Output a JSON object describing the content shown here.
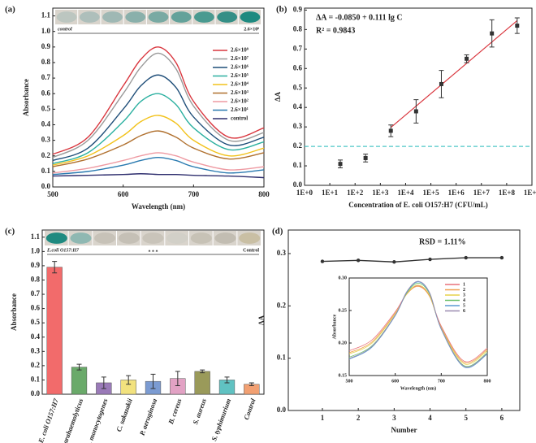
{
  "chart_data": [
    {
      "type": "line",
      "panel": "(a)",
      "xlabel": "Wavelength (nm)",
      "ylabel": "Absorbance",
      "x": [
        500,
        550,
        600,
        625,
        650,
        675,
        700,
        750,
        800
      ],
      "xlim": [
        500,
        800
      ],
      "xticks": [
        500,
        600,
        700,
        800
      ],
      "ylim": [
        0,
        1.15
      ],
      "yticks": [
        {
          "value": 0,
          "label": "0.0"
        },
        0.1,
        0.2,
        0.3,
        0.4,
        0.5,
        0.6,
        0.7,
        0.8,
        0.9,
        {
          "value": 1,
          "label": "1.0"
        },
        1.1
      ],
      "legend": "upper right",
      "strip": {
        "left": "control",
        "right": "2.6×10⁸"
      },
      "series": [
        {
          "name": "2.6×10⁸",
          "color": "#d9363e",
          "values": [
            0.21,
            0.32,
            0.65,
            0.82,
            0.9,
            0.8,
            0.55,
            0.32,
            0.38
          ]
        },
        {
          "name": "2.6×10⁷",
          "color": "#9a9a9a",
          "values": [
            0.19,
            0.3,
            0.6,
            0.77,
            0.86,
            0.76,
            0.52,
            0.3,
            0.35
          ]
        },
        {
          "name": "2.6×10⁶",
          "color": "#1f4e79",
          "values": [
            0.17,
            0.25,
            0.5,
            0.65,
            0.72,
            0.64,
            0.45,
            0.27,
            0.32
          ]
        },
        {
          "name": "2.6×10⁵",
          "color": "#2bb0a0",
          "values": [
            0.15,
            0.22,
            0.42,
            0.55,
            0.6,
            0.53,
            0.38,
            0.24,
            0.29
          ]
        },
        {
          "name": "2.6×10⁴",
          "color": "#f2c21b",
          "values": [
            0.14,
            0.2,
            0.33,
            0.42,
            0.46,
            0.41,
            0.3,
            0.2,
            0.25
          ]
        },
        {
          "name": "2.6×10³",
          "color": "#b0702e",
          "values": [
            0.13,
            0.18,
            0.27,
            0.33,
            0.36,
            0.32,
            0.25,
            0.18,
            0.22
          ]
        },
        {
          "name": "2.6×10²",
          "color": "#ee9aa2",
          "values": [
            0.09,
            0.12,
            0.17,
            0.2,
            0.22,
            0.2,
            0.16,
            0.11,
            0.13
          ]
        },
        {
          "name": "2.6×10¹",
          "color": "#2a7ab0",
          "values": [
            0.08,
            0.1,
            0.14,
            0.17,
            0.19,
            0.17,
            0.13,
            0.09,
            0.11
          ]
        },
        {
          "name": "control",
          "color": "#2e2e6e",
          "values": [
            0.07,
            0.075,
            0.08,
            0.085,
            0.08,
            0.08,
            0.075,
            0.07,
            0.06
          ]
        }
      ]
    },
    {
      "type": "scatter",
      "panel": "(b)",
      "xlabel": "Concentration of E. coli O157:H7 (CFU/mL)",
      "ylabel": "ΔA",
      "equation": "ΔA = -0.0850 + 0.111 lg C",
      "r2": "R² = 0.9843",
      "xlog": true,
      "xlim": [
        1,
        1000000000
      ],
      "xticks": [
        {
          "value": 1,
          "label": "1E+0"
        },
        {
          "value": 10,
          "label": "1E+1"
        },
        {
          "value": 100,
          "label": "1E+2"
        },
        {
          "value": 1000,
          "label": "1E+3"
        },
        {
          "value": 10000,
          "label": "1E+4"
        },
        {
          "value": 100000,
          "label": "1E+5"
        },
        {
          "value": 1000000,
          "label": "1E+6"
        },
        {
          "value": 10000000,
          "label": "1E+7"
        },
        {
          "value": 100000000,
          "label": "1E+8"
        },
        {
          "value": 1000000000,
          "label": "1E+9"
        }
      ],
      "ylim": [
        0,
        0.91
      ],
      "yticks": [
        {
          "value": 0,
          "label": "0.0"
        },
        0.1,
        0.2,
        0.3,
        0.4,
        0.5,
        0.6,
        0.7,
        0.8,
        0.9
      ],
      "x": [
        26,
        260,
        2600,
        26000,
        260000,
        2600000,
        26000000,
        260000000
      ],
      "values": [
        0.11,
        0.14,
        0.28,
        0.38,
        0.52,
        0.65,
        0.78,
        0.82
      ],
      "errors": [
        0.02,
        0.02,
        0.03,
        0.06,
        0.07,
        0.02,
        0.07,
        0.04
      ],
      "color": "#333333",
      "fit_line": {
        "x": [
          2600,
          260000000
        ],
        "values": [
          0.297,
          0.846
        ],
        "color": "#d9363e"
      },
      "threshold": 0.2,
      "threshold_color": "#4fc7c7"
    },
    {
      "type": "bar",
      "panel": "(c)",
      "ylabel": "Absorbance",
      "strip": {
        "left": "E.coli O157:H7",
        "middle": "* * *",
        "right": "Control"
      },
      "categories": [
        "E. coli O157:H7",
        "V. parahaemolyticus",
        "L. monocytogenes",
        "C. sakazakii",
        "P. aeruginosa",
        "B. cereus",
        "S. aureus",
        "S. typhimurium",
        "Control"
      ],
      "values": [
        0.89,
        0.19,
        0.08,
        0.1,
        0.09,
        0.11,
        0.16,
        0.1,
        0.07
      ],
      "errors": [
        0.04,
        0.02,
        0.04,
        0.03,
        0.05,
        0.05,
        0.01,
        0.02,
        0.01
      ],
      "colors": [
        "#f26b6b",
        "#6aaa6a",
        "#9a7ab8",
        "#f2e27e",
        "#7b9bd2",
        "#e2a2c4",
        "#9a9a5a",
        "#60c2c2",
        "#f2a072"
      ],
      "ylim": [
        0,
        1.15
      ],
      "yticks": [
        {
          "value": 0,
          "label": "0.0"
        },
        0.1,
        0.2,
        0.3,
        0.4,
        0.5,
        0.6,
        0.7,
        0.8,
        0.9,
        {
          "value": 1,
          "label": "1.0"
        },
        1.1
      ]
    },
    {
      "type": "line",
      "panel": "(d)",
      "xlabel": "Number",
      "ylabel": "ΔA",
      "annotation": "RSD = 1.11%",
      "x": [
        1,
        2,
        3,
        4,
        5,
        6
      ],
      "values": [
        0.285,
        0.287,
        0.284,
        0.289,
        0.292,
        0.292
      ],
      "color": "#333333",
      "markers": true,
      "xlim": [
        0.05,
        6.5
      ],
      "xticks": [
        1,
        2,
        3,
        4,
        5,
        6
      ],
      "ylim": [
        0,
        0.345
      ],
      "yticks": [
        {
          "value": 0,
          "label": "0.0"
        },
        0.1,
        0.2,
        0.3
      ],
      "inset": {
        "type": "line",
        "xlabel": "Wavelength (nm)",
        "ylabel": "Absorbance",
        "legend": "upper right",
        "x": [
          500,
          550,
          600,
          625,
          650,
          675,
          700,
          750,
          800
        ],
        "xlim": [
          500,
          800
        ],
        "xticks": [
          500,
          600,
          700,
          800
        ],
        "ylim": [
          0.15,
          0.3
        ],
        "yticks": [
          0.15,
          {
            "value": 0.2,
            "label": "0.20"
          },
          0.25,
          {
            "value": 0.3,
            "label": "0.30"
          }
        ],
        "series": [
          {
            "name": "1",
            "color": "#e8707a",
            "values": [
              0.188,
              0.205,
              0.248,
              0.276,
              0.288,
              0.272,
              0.226,
              0.172,
              0.192
            ]
          },
          {
            "name": "2",
            "color": "#f0a050",
            "values": [
              0.185,
              0.202,
              0.246,
              0.275,
              0.287,
              0.271,
              0.224,
              0.17,
              0.19
            ]
          },
          {
            "name": "3",
            "color": "#e6d24a",
            "values": [
              0.183,
              0.2,
              0.245,
              0.276,
              0.289,
              0.273,
              0.223,
              0.168,
              0.188
            ]
          },
          {
            "name": "4",
            "color": "#6abf6a",
            "values": [
              0.178,
              0.196,
              0.243,
              0.277,
              0.292,
              0.275,
              0.222,
              0.165,
              0.185
            ]
          },
          {
            "name": "5",
            "color": "#5a9ad2",
            "values": [
              0.175,
              0.194,
              0.242,
              0.278,
              0.294,
              0.276,
              0.221,
              0.163,
              0.183
            ]
          },
          {
            "name": "6",
            "color": "#9a8ab0",
            "values": [
              0.176,
              0.195,
              0.243,
              0.279,
              0.295,
              0.277,
              0.222,
              0.164,
              0.184
            ]
          }
        ]
      }
    }
  ]
}
